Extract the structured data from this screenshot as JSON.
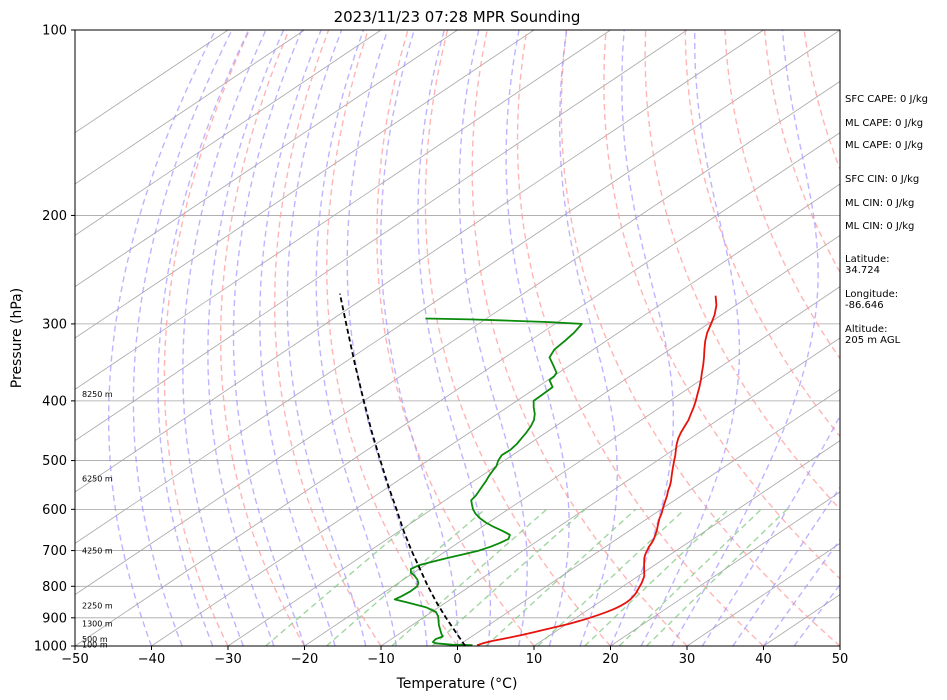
{
  "chart_data": {
    "type": "line",
    "title": "2023/11/23 07:28 MPR Sounding",
    "xlabel": "Temperature (°C)",
    "ylabel": "Pressure (hPa)",
    "xlim": [
      -50,
      50
    ],
    "ylim": [
      1000,
      100
    ],
    "y_scale": "log",
    "skew": "skew-T",
    "grid": true,
    "x_ticks": [
      "−50",
      "−40",
      "−30",
      "−20",
      "−10",
      "0",
      "10",
      "20",
      "30",
      "40",
      "50"
    ],
    "y_ticks": [
      {
        "p": 100,
        "label": "100"
      },
      {
        "p": 200,
        "label": "200"
      },
      {
        "p": 300,
        "label": "300"
      },
      {
        "p": 400,
        "label": "400"
      },
      {
        "p": 500,
        "label": "500"
      },
      {
        "p": 600,
        "label": "600"
      },
      {
        "p": 700,
        "label": "700"
      },
      {
        "p": 800,
        "label": "800"
      },
      {
        "p": 900,
        "label": "900"
      },
      {
        "p": 1000,
        "label": "1000"
      }
    ],
    "height_labels": [
      {
        "p": 995,
        "label": "100 m"
      },
      {
        "p": 975,
        "label": "500 m"
      },
      {
        "p": 920,
        "label": "1300 m"
      },
      {
        "p": 860,
        "label": "2250 m"
      },
      {
        "p": 700,
        "label": "4250 m"
      },
      {
        "p": 535,
        "label": "6250 m"
      },
      {
        "p": 390,
        "label": "8250 m"
      }
    ],
    "series": [
      {
        "role": "temperature",
        "color": "#e8120c",
        "points": [
          {
            "p": 997,
            "t": 2.4
          },
          {
            "p": 990,
            "t": 2.8
          },
          {
            "p": 982,
            "t": 3.5
          },
          {
            "p": 970,
            "t": 5.0
          },
          {
            "p": 960,
            "t": 6.2
          },
          {
            "p": 950,
            "t": 7.3
          },
          {
            "p": 940,
            "t": 8.3
          },
          {
            "p": 930,
            "t": 9.3
          },
          {
            "p": 920,
            "t": 10.3
          },
          {
            "p": 910,
            "t": 11.1
          },
          {
            "p": 900,
            "t": 11.8
          },
          {
            "p": 890,
            "t": 12.4
          },
          {
            "p": 880,
            "t": 12.9
          },
          {
            "p": 870,
            "t": 13.3
          },
          {
            "p": 860,
            "t": 13.5
          },
          {
            "p": 850,
            "t": 13.6
          },
          {
            "p": 840,
            "t": 13.5
          },
          {
            "p": 830,
            "t": 13.3
          },
          {
            "p": 820,
            "t": 13.0
          },
          {
            "p": 810,
            "t": 12.6
          },
          {
            "p": 800,
            "t": 12.2
          },
          {
            "p": 790,
            "t": 11.8
          },
          {
            "p": 780,
            "t": 11.3
          },
          {
            "p": 770,
            "t": 10.8
          },
          {
            "p": 760,
            "t": 10.1
          },
          {
            "p": 750,
            "t": 9.4
          },
          {
            "p": 740,
            "t": 8.7
          },
          {
            "p": 730,
            "t": 8.0
          },
          {
            "p": 720,
            "t": 7.3
          },
          {
            "p": 710,
            "t": 6.7
          },
          {
            "p": 700,
            "t": 6.2
          },
          {
            "p": 690,
            "t": 5.7
          },
          {
            "p": 680,
            "t": 5.3
          },
          {
            "p": 670,
            "t": 4.8
          },
          {
            "p": 660,
            "t": 4.2
          },
          {
            "p": 650,
            "t": 3.6
          },
          {
            "p": 640,
            "t": 2.9
          },
          {
            "p": 630,
            "t": 2.2
          },
          {
            "p": 620,
            "t": 1.5
          },
          {
            "p": 610,
            "t": 0.9
          },
          {
            "p": 600,
            "t": 0.2
          },
          {
            "p": 590,
            "t": -0.5
          },
          {
            "p": 580,
            "t": -1.2
          },
          {
            "p": 570,
            "t": -1.9
          },
          {
            "p": 560,
            "t": -2.7
          },
          {
            "p": 550,
            "t": -3.4
          },
          {
            "p": 540,
            "t": -4.2
          },
          {
            "p": 530,
            "t": -5.1
          },
          {
            "p": 520,
            "t": -6.0
          },
          {
            "p": 510,
            "t": -6.9
          },
          {
            "p": 500,
            "t": -7.8
          },
          {
            "p": 490,
            "t": -8.7
          },
          {
            "p": 480,
            "t": -9.7
          },
          {
            "p": 470,
            "t": -10.7
          },
          {
            "p": 460,
            "t": -11.6
          },
          {
            "p": 450,
            "t": -12.4
          },
          {
            "p": 440,
            "t": -13.1
          },
          {
            "p": 430,
            "t": -13.8
          },
          {
            "p": 420,
            "t": -14.7
          },
          {
            "p": 410,
            "t": -15.6
          },
          {
            "p": 400,
            "t": -16.6
          },
          {
            "p": 390,
            "t": -17.7
          },
          {
            "p": 380,
            "t": -18.8
          },
          {
            "p": 370,
            "t": -20.0
          },
          {
            "p": 360,
            "t": -21.3
          },
          {
            "p": 350,
            "t": -22.6
          },
          {
            "p": 340,
            "t": -24.0
          },
          {
            "p": 330,
            "t": -25.5
          },
          {
            "p": 320,
            "t": -27.0
          },
          {
            "p": 310,
            "t": -28.4
          },
          {
            "p": 300,
            "t": -29.6
          },
          {
            "p": 290,
            "t": -30.9
          },
          {
            "p": 280,
            "t": -32.5
          },
          {
            "p": 270,
            "t": -34.5
          }
        ]
      },
      {
        "role": "dewpoint",
        "color": "#0a8a0a",
        "points": [
          {
            "p": 997,
            "t": 1.8
          },
          {
            "p": 995,
            "t": -1.0
          },
          {
            "p": 990,
            "t": -3.4
          },
          {
            "p": 985,
            "t": -4.0
          },
          {
            "p": 975,
            "t": -4.2
          },
          {
            "p": 965,
            "t": -3.8
          },
          {
            "p": 955,
            "t": -4.5
          },
          {
            "p": 940,
            "t": -5.5
          },
          {
            "p": 925,
            "t": -6.5
          },
          {
            "p": 910,
            "t": -7.4
          },
          {
            "p": 895,
            "t": -8.3
          },
          {
            "p": 880,
            "t": -9.5
          },
          {
            "p": 865,
            "t": -11.7
          },
          {
            "p": 850,
            "t": -15.0
          },
          {
            "p": 840,
            "t": -17.3
          },
          {
            "p": 830,
            "t": -17.0
          },
          {
            "p": 815,
            "t": -16.8
          },
          {
            "p": 800,
            "t": -16.9
          },
          {
            "p": 790,
            "t": -17.4
          },
          {
            "p": 780,
            "t": -18.2
          },
          {
            "p": 770,
            "t": -19.2
          },
          {
            "p": 760,
            "t": -20.4
          },
          {
            "p": 750,
            "t": -21.1
          },
          {
            "p": 740,
            "t": -20.8
          },
          {
            "p": 730,
            "t": -19.7
          },
          {
            "p": 720,
            "t": -18.5
          },
          {
            "p": 710,
            "t": -17.1
          },
          {
            "p": 700,
            "t": -15.8
          },
          {
            "p": 690,
            "t": -15.0
          },
          {
            "p": 680,
            "t": -14.5
          },
          {
            "p": 670,
            "t": -14.2
          },
          {
            "p": 660,
            "t": -14.8
          },
          {
            "p": 650,
            "t": -16.6
          },
          {
            "p": 640,
            "t": -18.6
          },
          {
            "p": 630,
            "t": -20.4
          },
          {
            "p": 620,
            "t": -22.0
          },
          {
            "p": 610,
            "t": -23.4
          },
          {
            "p": 600,
            "t": -24.6
          },
          {
            "p": 590,
            "t": -25.6
          },
          {
            "p": 580,
            "t": -26.6
          },
          {
            "p": 570,
            "t": -26.9
          },
          {
            "p": 560,
            "t": -27.4
          },
          {
            "p": 550,
            "t": -27.9
          },
          {
            "p": 540,
            "t": -28.4
          },
          {
            "p": 530,
            "t": -29.0
          },
          {
            "p": 520,
            "t": -29.5
          },
          {
            "p": 510,
            "t": -30.0
          },
          {
            "p": 500,
            "t": -30.8
          },
          {
            "p": 490,
            "t": -31.4
          },
          {
            "p": 480,
            "t": -31.3
          },
          {
            "p": 470,
            "t": -31.6
          },
          {
            "p": 460,
            "t": -32.1
          },
          {
            "p": 450,
            "t": -32.6
          },
          {
            "p": 440,
            "t": -33.2
          },
          {
            "p": 430,
            "t": -34.0
          },
          {
            "p": 420,
            "t": -35.1
          },
          {
            "p": 410,
            "t": -36.5
          },
          {
            "p": 400,
            "t": -37.8
          },
          {
            "p": 390,
            "t": -37.9
          },
          {
            "p": 380,
            "t": -38.0
          },
          {
            "p": 370,
            "t": -39.8
          },
          {
            "p": 365,
            "t": -39.9
          },
          {
            "p": 360,
            "t": -40.3
          },
          {
            "p": 350,
            "t": -42.2
          },
          {
            "p": 340,
            "t": -44.2
          },
          {
            "p": 330,
            "t": -45.1
          },
          {
            "p": 320,
            "t": -45.4
          },
          {
            "p": 310,
            "t": -45.8
          },
          {
            "p": 300,
            "t": -46.5
          },
          {
            "p": 298,
            "t": -51.0
          },
          {
            "p": 296,
            "t": -58.0
          },
          {
            "p": 295,
            "t": -62.0
          },
          {
            "p": 294,
            "t": -68.0
          }
        ]
      },
      {
        "role": "parcel",
        "color": "#000000",
        "dashed": true,
        "points": [
          {
            "p": 1000,
            "t": 1.0
          },
          {
            "p": 950,
            "t": -2.9
          },
          {
            "p": 900,
            "t": -7.0
          },
          {
            "p": 850,
            "t": -11.2
          },
          {
            "p": 800,
            "t": -15.5
          },
          {
            "p": 750,
            "t": -19.9
          },
          {
            "p": 700,
            "t": -24.6
          },
          {
            "p": 650,
            "t": -29.5
          },
          {
            "p": 600,
            "t": -34.6
          },
          {
            "p": 550,
            "t": -40.2
          },
          {
            "p": 500,
            "t": -46.2
          },
          {
            "p": 450,
            "t": -52.8
          },
          {
            "p": 400,
            "t": -60.0
          },
          {
            "p": 350,
            "t": -68.1
          },
          {
            "p": 300,
            "t": -77.3
          },
          {
            "p": 268,
            "t": -84.0
          }
        ]
      }
    ],
    "background_lines": {
      "dry_adiabat_color": "#ff9c9c",
      "moist_adiabat_color": "#9c8cff",
      "mixing_ratio_color": "#82c882",
      "isotherm_color": "#a6a6a6"
    },
    "annotations": [
      "SFC CAPE: 0 J/kg",
      "ML CAPE: 0 J/kg",
      "ML CAPE: 0 J/kg",
      "SFC CIN: 0 J/kg",
      "ML CIN: 0 J/kg",
      "ML CIN: 0 J/kg",
      "Latitude:",
      "34.724",
      "Longitude:",
      "-86.646",
      "Altitude:",
      "205 m AGL"
    ]
  }
}
